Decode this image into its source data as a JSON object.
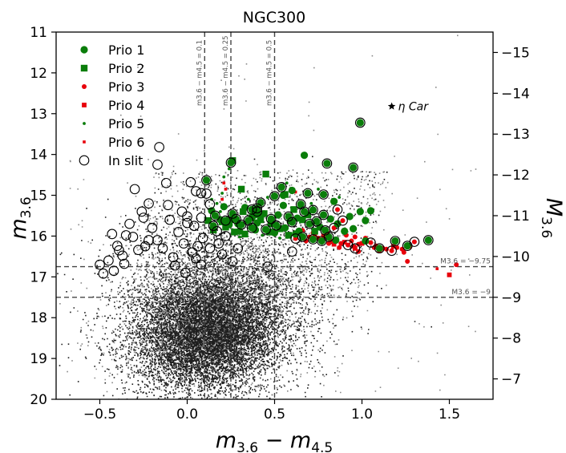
{
  "chart_data": {
    "type": "scatter",
    "title": "NGC300",
    "x_label": {
      "main": "m",
      "sub1": "3.6",
      "mid": " − m",
      "sub2": "4.5"
    },
    "y_label": {
      "main": "m",
      "sub": "3.6"
    },
    "y2_label": {
      "main": "M",
      "sub": "3.6"
    },
    "xlim": [
      -0.75,
      1.75
    ],
    "ylim": [
      20,
      11
    ],
    "y2_offset": -26.5,
    "x_ticks": [
      -0.5,
      0.0,
      0.5,
      1.0,
      1.5
    ],
    "x_tick_labels": [
      "−0.5",
      "0.0",
      "0.5",
      "1.0",
      "1.5"
    ],
    "y_ticks": [
      11,
      12,
      13,
      14,
      15,
      16,
      17,
      18,
      19,
      20
    ],
    "y_tick_labels": [
      "11",
      "12",
      "13",
      "14",
      "15",
      "16",
      "17",
      "18",
      "19",
      "20"
    ],
    "y2_ticks": [
      -15,
      -14,
      -13,
      -12,
      -11,
      -10,
      -9,
      -8,
      -7
    ],
    "y2_tick_labels": [
      "−15",
      "−14",
      "−13",
      "−12",
      "−11",
      "−10",
      "−9",
      "−8",
      "−7"
    ],
    "vlines": [
      {
        "x": 0.1,
        "label": "m3.6 − m4.5 = 0.1"
      },
      {
        "x": 0.25,
        "label": "m3.6 − m4.5 = 0.25"
      },
      {
        "x": 0.5,
        "label": "m3.6 − m4.5 = 0.5"
      }
    ],
    "hlines": [
      {
        "y": 16.75,
        "label": "M3.6 = −9.75"
      },
      {
        "y": 17.5,
        "label": "M3.6 = −9"
      }
    ],
    "eta_car": {
      "x": 1.17,
      "y": 12.82,
      "label": "η Car"
    },
    "legend": {
      "position": "top-left",
      "entries": [
        {
          "label": "Prio 1",
          "marker": "circle",
          "color": "#0a7d0a"
        },
        {
          "label": "Prio 2",
          "marker": "square",
          "color": "#0a7d0a"
        },
        {
          "label": "Prio 3",
          "marker": "circle-small",
          "color": "#e8000b"
        },
        {
          "label": "Prio 4",
          "marker": "square-small",
          "color": "#e8000b"
        },
        {
          "label": "Prio 5",
          "marker": "dot",
          "color": "#0a7d0a"
        },
        {
          "label": "Prio 6",
          "marker": "square-tiny",
          "color": "#e8000b"
        },
        {
          "label": "In slit",
          "marker": "open-circle",
          "color": "#000000"
        }
      ]
    },
    "colors": {
      "green": "#0a7d0a",
      "red": "#e8000b",
      "background_points": "#222222",
      "grey_points": "#8a8a8a"
    },
    "background_cloud": {
      "description": "field stars",
      "center_x": 0.15,
      "center_y": 18.3,
      "approx_count": 14000
    },
    "series": [
      {
        "name": "Prio 1",
        "marker": "circle",
        "points": [
          [
            0.99,
            13.22
          ],
          [
            0.8,
            14.22
          ],
          [
            0.95,
            14.32
          ],
          [
            0.67,
            14.02
          ],
          [
            0.25,
            14.2
          ],
          [
            0.11,
            14.63
          ],
          [
            0.54,
            14.8
          ],
          [
            0.6,
            14.88
          ],
          [
            0.5,
            15.02
          ],
          [
            0.55,
            15.0
          ],
          [
            0.69,
            14.95
          ],
          [
            0.78,
            14.98
          ],
          [
            0.84,
            15.15
          ],
          [
            0.65,
            15.22
          ],
          [
            0.55,
            15.25
          ],
          [
            0.42,
            15.18
          ],
          [
            0.4,
            15.32
          ],
          [
            0.37,
            15.35
          ],
          [
            0.33,
            15.3
          ],
          [
            0.26,
            15.45
          ],
          [
            0.28,
            15.58
          ],
          [
            0.22,
            15.62
          ],
          [
            0.15,
            15.75
          ],
          [
            0.16,
            15.5
          ],
          [
            0.21,
            15.28
          ],
          [
            0.14,
            15.38
          ],
          [
            0.4,
            15.4
          ],
          [
            0.42,
            15.52
          ],
          [
            0.48,
            15.58
          ],
          [
            0.52,
            15.48
          ],
          [
            0.58,
            15.52
          ],
          [
            0.59,
            15.63
          ],
          [
            0.63,
            15.56
          ],
          [
            0.67,
            15.4
          ],
          [
            0.72,
            15.36
          ],
          [
            0.78,
            15.48
          ],
          [
            0.82,
            15.58
          ],
          [
            0.86,
            15.7
          ],
          [
            0.93,
            15.52
          ],
          [
            0.99,
            15.4
          ],
          [
            1.05,
            15.38
          ],
          [
            1.02,
            15.62
          ],
          [
            0.95,
            15.82
          ],
          [
            0.9,
            15.88
          ],
          [
            0.35,
            15.62
          ],
          [
            0.37,
            15.8
          ],
          [
            0.4,
            15.68
          ],
          [
            0.45,
            15.84
          ],
          [
            0.39,
            15.85
          ],
          [
            0.31,
            15.72
          ],
          [
            0.3,
            15.88
          ],
          [
            0.51,
            15.74
          ],
          [
            0.56,
            15.8
          ],
          [
            0.6,
            15.66
          ],
          [
            0.64,
            15.88
          ],
          [
            0.7,
            15.7
          ],
          [
            0.74,
            15.64
          ],
          [
            0.76,
            15.78
          ],
          [
            0.79,
            15.86
          ],
          [
            1.1,
            16.3
          ],
          [
            1.19,
            16.12
          ],
          [
            1.26,
            16.24
          ],
          [
            1.38,
            16.1
          ],
          [
            0.62,
            15.95
          ],
          [
            0.66,
            16.02
          ],
          [
            0.72,
            16.08
          ],
          [
            0.77,
            16.12
          ],
          [
            0.81,
            16.02
          ],
          [
            0.85,
            16.1
          ],
          [
            1.02,
            16.12
          ],
          [
            0.29,
            15.7
          ],
          [
            0.24,
            15.72
          ],
          [
            0.19,
            15.6
          ],
          [
            0.5,
            15.92
          ]
        ]
      },
      {
        "name": "Prio 2",
        "marker": "square",
        "points": [
          [
            0.26,
            14.15
          ],
          [
            0.45,
            14.48
          ],
          [
            0.56,
            14.98
          ],
          [
            0.31,
            14.85
          ],
          [
            0.44,
            15.45
          ],
          [
            0.48,
            15.7
          ],
          [
            0.37,
            15.55
          ],
          [
            0.25,
            15.6
          ],
          [
            0.2,
            15.65
          ],
          [
            0.33,
            15.95
          ],
          [
            0.42,
            15.6
          ],
          [
            0.61,
            15.35
          ],
          [
            0.15,
            15.85
          ],
          [
            0.27,
            15.9
          ],
          [
            0.53,
            15.82
          ],
          [
            0.69,
            15.48
          ],
          [
            0.38,
            15.48
          ],
          [
            0.47,
            15.9
          ],
          [
            0.22,
            15.78
          ],
          [
            0.32,
            15.4
          ],
          [
            0.58,
            15.98
          ],
          [
            0.66,
            15.6
          ],
          [
            0.73,
            15.88
          ],
          [
            0.12,
            15.62
          ]
        ]
      },
      {
        "name": "Prio 3",
        "marker": "circle-small",
        "points": [
          [
            0.95,
            14.32
          ],
          [
            0.86,
            15.35
          ],
          [
            0.89,
            15.62
          ],
          [
            0.84,
            15.8
          ],
          [
            0.8,
            15.9
          ],
          [
            0.73,
            15.96
          ],
          [
            0.7,
            16.02
          ],
          [
            0.77,
            16.1
          ],
          [
            0.82,
            16.12
          ],
          [
            0.88,
            16.18
          ],
          [
            0.92,
            16.22
          ],
          [
            0.95,
            16.25
          ],
          [
            0.98,
            16.2
          ],
          [
            1.02,
            16.05
          ],
          [
            1.05,
            16.16
          ],
          [
            1.08,
            16.24
          ],
          [
            1.12,
            16.3
          ],
          [
            1.14,
            16.32
          ],
          [
            1.17,
            16.36
          ],
          [
            1.2,
            16.28
          ],
          [
            1.24,
            16.4
          ],
          [
            1.27,
            16.26
          ],
          [
            1.3,
            16.14
          ],
          [
            0.66,
            15.86
          ],
          [
            0.62,
            16.06
          ],
          [
            0.91,
            15.98
          ],
          [
            0.96,
            16.02
          ],
          [
            1.54,
            16.7
          ],
          [
            1.26,
            16.62
          ],
          [
            0.81,
            16.18
          ],
          [
            0.75,
            16.05
          ],
          [
            0.98,
            16.38
          ],
          [
            1.07,
            16.28
          ],
          [
            1.23,
            16.32
          ],
          [
            0.72,
            15.92
          ],
          [
            0.87,
            16.28
          ],
          [
            0.94,
            16.12
          ],
          [
            0.68,
            16.12
          ]
        ]
      },
      {
        "name": "Prio 4",
        "marker": "square-small",
        "points": [
          [
            0.9,
            16.15
          ],
          [
            0.96,
            16.3
          ],
          [
            1.0,
            16.18
          ],
          [
            1.1,
            16.35
          ],
          [
            1.5,
            16.95
          ],
          [
            0.84,
            16.2
          ],
          [
            1.18,
            16.25
          ],
          [
            0.78,
            16.0
          ]
        ]
      },
      {
        "name": "Prio 5",
        "marker": "dot",
        "points": [
          [
            0.21,
            14.55
          ],
          [
            0.2,
            14.95
          ],
          [
            0.14,
            15.1
          ],
          [
            0.17,
            15.2
          ],
          [
            0.24,
            14.35
          ],
          [
            0.35,
            15.1
          ],
          [
            0.46,
            15.05
          ],
          [
            0.57,
            14.7
          ],
          [
            0.64,
            15.3
          ],
          [
            0.43,
            15.98
          ],
          [
            0.19,
            15.4
          ],
          [
            0.3,
            16.02
          ],
          [
            0.53,
            16.05
          ],
          [
            0.71,
            15.2
          ],
          [
            0.87,
            15.05
          ],
          [
            0.75,
            14.85
          ]
        ]
      },
      {
        "name": "Prio 6",
        "marker": "square-tiny",
        "points": [
          [
            0.21,
            14.7
          ],
          [
            0.22,
            14.85
          ],
          [
            0.2,
            15.1
          ],
          [
            1.43,
            16.8
          ],
          [
            0.62,
            14.92
          ],
          [
            0.18,
            15.55
          ]
        ]
      },
      {
        "name": "In slit",
        "marker": "open-circle",
        "points": [
          [
            0.99,
            13.22
          ],
          [
            0.8,
            14.22
          ],
          [
            0.95,
            14.32
          ],
          [
            0.25,
            14.2
          ],
          [
            0.11,
            14.63
          ],
          [
            0.54,
            14.8
          ],
          [
            0.5,
            15.02
          ],
          [
            0.69,
            14.95
          ],
          [
            0.78,
            14.98
          ],
          [
            0.65,
            15.22
          ],
          [
            0.42,
            15.18
          ],
          [
            0.4,
            15.32
          ],
          [
            0.37,
            15.35
          ],
          [
            0.26,
            15.45
          ],
          [
            0.28,
            15.58
          ],
          [
            0.22,
            15.62
          ],
          [
            0.15,
            15.75
          ],
          [
            0.4,
            15.4
          ],
          [
            0.48,
            15.58
          ],
          [
            0.58,
            15.52
          ],
          [
            0.67,
            15.4
          ],
          [
            0.72,
            15.36
          ],
          [
            0.78,
            15.48
          ],
          [
            0.86,
            15.35
          ],
          [
            0.89,
            15.62
          ],
          [
            0.35,
            15.62
          ],
          [
            0.37,
            15.8
          ],
          [
            0.45,
            15.84
          ],
          [
            0.31,
            15.72
          ],
          [
            0.51,
            15.74
          ],
          [
            0.6,
            15.66
          ],
          [
            0.7,
            15.7
          ],
          [
            0.74,
            15.64
          ],
          [
            0.79,
            15.86
          ],
          [
            0.84,
            15.8
          ],
          [
            1.1,
            16.3
          ],
          [
            1.19,
            16.12
          ],
          [
            1.26,
            16.24
          ],
          [
            1.38,
            16.1
          ],
          [
            0.66,
            16.02
          ],
          [
            0.72,
            16.08
          ],
          [
            0.77,
            16.12
          ],
          [
            0.81,
            16.02
          ],
          [
            0.92,
            16.22
          ],
          [
            0.96,
            16.3
          ],
          [
            1.05,
            16.16
          ],
          [
            1.17,
            16.36
          ],
          [
            1.3,
            16.14
          ],
          [
            0.62,
            16.06
          ],
          [
            0.16,
            15.5
          ],
          [
            0.11,
            14.96
          ],
          [
            -0.16,
            13.82
          ],
          [
            -0.11,
            15.24
          ],
          [
            -0.03,
            15.4
          ],
          [
            0.02,
            14.68
          ],
          [
            0.04,
            15.75
          ],
          [
            0.05,
            14.9
          ],
          [
            0.08,
            15.55
          ],
          [
            -0.25,
            15.55
          ],
          [
            -0.2,
            15.8
          ],
          [
            -0.22,
            16.1
          ],
          [
            -0.28,
            16.34
          ],
          [
            -0.37,
            16.48
          ],
          [
            -0.31,
            16.02
          ],
          [
            -0.4,
            16.24
          ],
          [
            -0.45,
            16.6
          ],
          [
            -0.42,
            16.85
          ],
          [
            -0.36,
            16.68
          ],
          [
            -0.14,
            16.3
          ],
          [
            -0.08,
            16.52
          ],
          [
            0.0,
            15.68
          ],
          [
            -0.05,
            15.9
          ],
          [
            -0.02,
            16.18
          ],
          [
            0.03,
            16.4
          ],
          [
            0.09,
            16.05
          ],
          [
            0.13,
            16.3
          ],
          [
            0.18,
            16.18
          ],
          [
            0.2,
            16.45
          ],
          [
            0.22,
            16.0
          ],
          [
            0.13,
            15.22
          ],
          [
            0.17,
            15.88
          ],
          [
            -0.1,
            15.6
          ],
          [
            -0.26,
            15.4
          ],
          [
            -0.33,
            15.7
          ],
          [
            -0.17,
            16.1
          ],
          [
            0.06,
            16.25
          ],
          [
            -0.07,
            16.72
          ],
          [
            -0.5,
            16.7
          ],
          [
            -0.48,
            16.92
          ],
          [
            0.08,
            14.95
          ],
          [
            -0.12,
            14.7
          ],
          [
            -0.3,
            14.85
          ],
          [
            0.0,
            15.52
          ],
          [
            0.05,
            16.55
          ],
          [
            -0.22,
            15.2
          ],
          [
            -0.35,
            15.98
          ],
          [
            -0.39,
            16.35
          ],
          [
            -0.24,
            16.25
          ],
          [
            0.08,
            16.7
          ],
          [
            -0.01,
            16.9
          ],
          [
            0.26,
            16.62
          ],
          [
            0.29,
            16.3
          ],
          [
            0.46,
            16.75
          ],
          [
            0.6,
            16.38
          ],
          [
            -0.17,
            14.25
          ],
          [
            -0.43,
            15.95
          ]
        ]
      }
    ]
  }
}
